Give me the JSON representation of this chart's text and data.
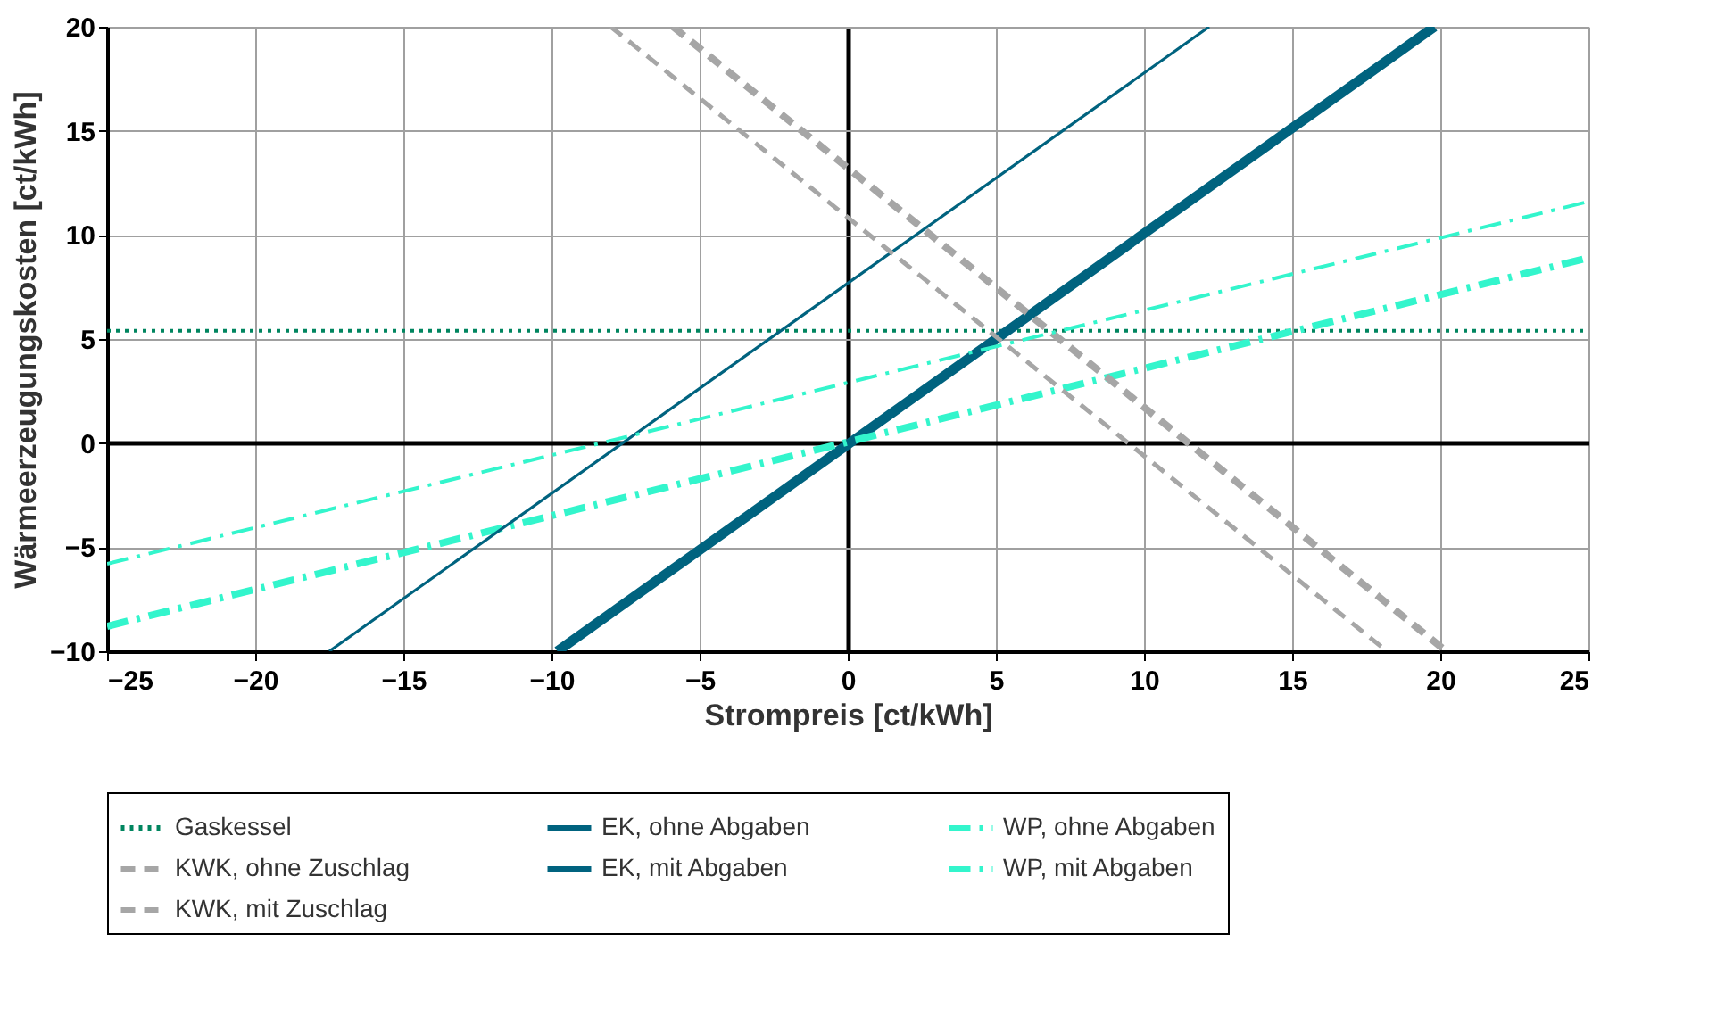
{
  "chart_data": {
    "type": "line",
    "xlabel": "Strompreis [ct/kWh]",
    "ylabel": "Wärmeerzeugungskosten [ct/kWh]",
    "xlim": [
      -25,
      25
    ],
    "xticks": [
      -25,
      -20,
      -15,
      -10,
      -5,
      0,
      5,
      10,
      15,
      20,
      25
    ],
    "ylim": [
      -10,
      20
    ],
    "yticks": [
      -10,
      -5,
      0,
      5,
      10,
      15,
      20
    ],
    "grid": true,
    "legend": "bottom",
    "marker": "none",
    "series": [
      {
        "name": "Gaskessel",
        "color": "#00855f",
        "line_style": "dotted",
        "x": [
          -25,
          25
        ],
        "values": [
          5.4,
          5.4
        ]
      },
      {
        "name": "EK, ohne Abgaben",
        "color": "#00637f",
        "line_style": "solid",
        "x": [
          -9.8,
          19.8
        ],
        "values": [
          -10,
          20
        ]
      },
      {
        "name": "WP, ohne Abgaben",
        "color": "#33f5cc",
        "line_style": "dashdot",
        "x": [
          -25,
          25
        ],
        "values": [
          -8.8,
          8.9
        ]
      },
      {
        "name": "KWK, ohne Zuschlag",
        "color": "#a6a6a6",
        "line_style": "dashed",
        "x": [
          -5.9,
          20.2
        ],
        "values": [
          20,
          -10
        ]
      },
      {
        "name": "EK, mit Abgaben",
        "color": "#00637f",
        "line_style": "solid",
        "x": [
          -17.5,
          12.2
        ],
        "values": [
          -10,
          20
        ]
      },
      {
        "name": "WP, mit Abgaben",
        "color": "#33f5cc",
        "line_style": "dashdot",
        "x": [
          -25,
          25
        ],
        "values": [
          -5.8,
          11.6
        ]
      },
      {
        "name": "KWK, mit Zuschlag",
        "color": "#a6a6a6",
        "line_style": "dashed",
        "x": [
          -8.0,
          18.2
        ],
        "values": [
          20,
          -10
        ]
      }
    ]
  }
}
